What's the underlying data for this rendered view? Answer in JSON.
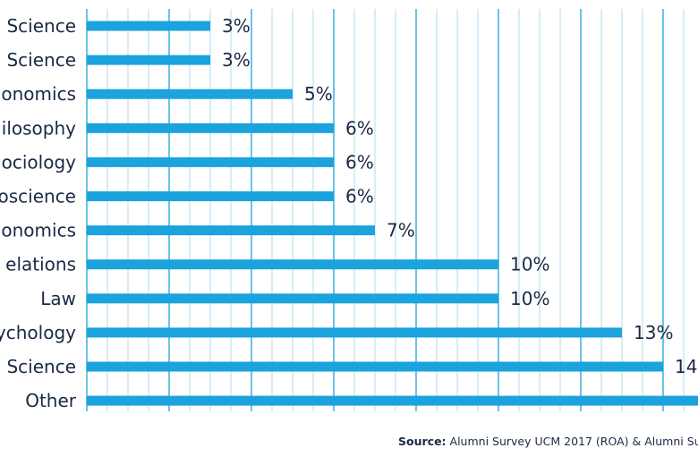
{
  "chart_data": {
    "type": "bar",
    "orientation": "horizontal",
    "categories": [
      "Science",
      "Science",
      "onomics",
      "ilosophy",
      "ociology",
      "oscience",
      "onomics",
      "elations",
      "Law",
      "ychology",
      "Science",
      "Other"
    ],
    "values": [
      3,
      3,
      5,
      6,
      6,
      6,
      7,
      10,
      10,
      13,
      14,
      15
    ],
    "value_labels": [
      "3%",
      "3%",
      "5%",
      "6%",
      "6%",
      "6%",
      "7%",
      "10%",
      "10%",
      "13%",
      "14",
      ""
    ],
    "unit": "%",
    "xlim": [
      0,
      15
    ],
    "grid": true,
    "bar_color": "#1aa3dc",
    "grid_color": "#1aa3dc",
    "text_color": "#1a2a44"
  },
  "source": {
    "label": "Source:",
    "text": "Alumni Survey UCM 2017 (ROA) & Alumni Su"
  }
}
